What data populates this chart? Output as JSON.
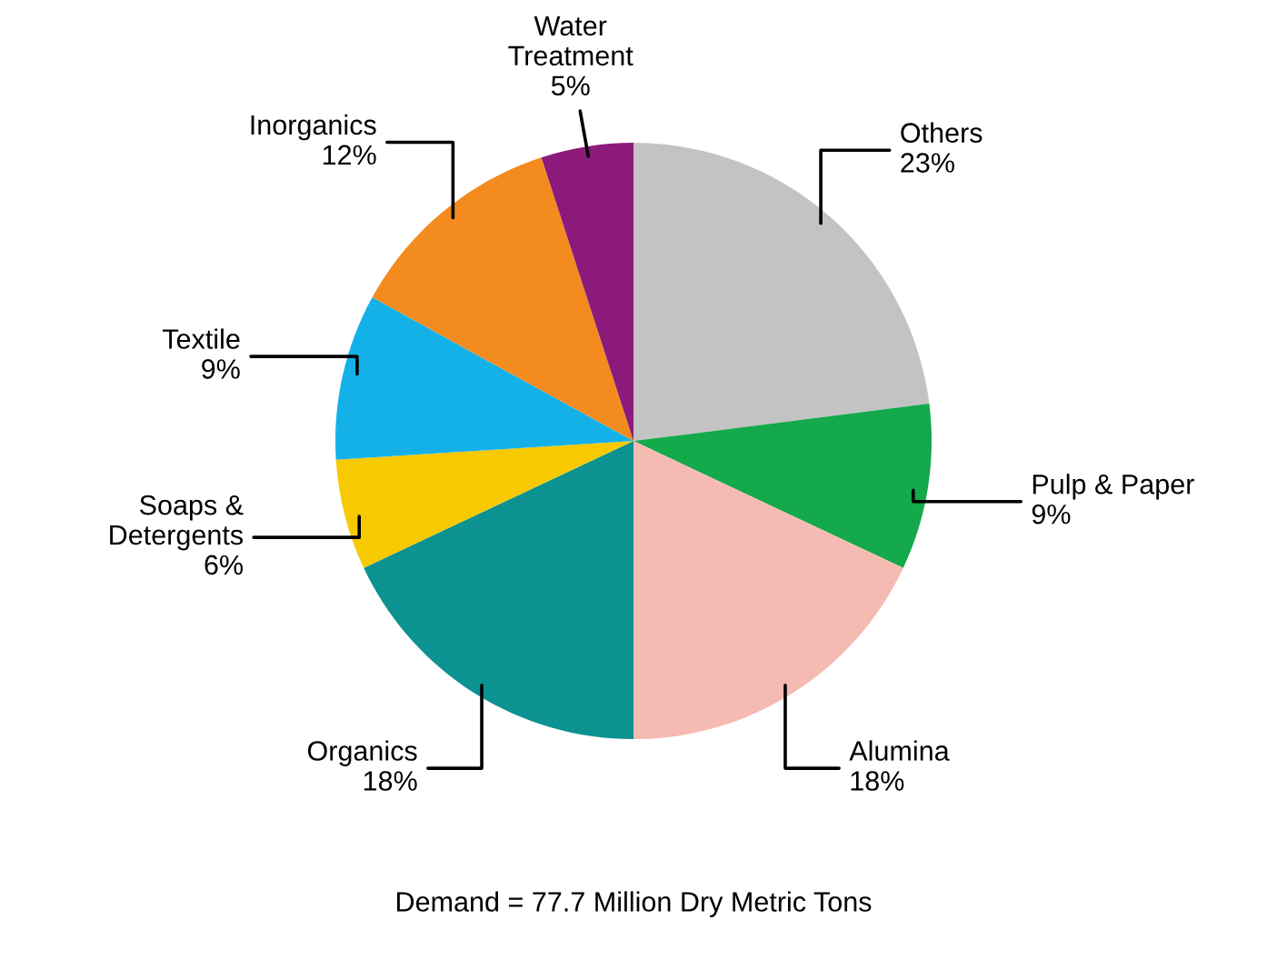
{
  "chart_data": {
    "type": "pie",
    "categories": [
      "Others",
      "Pulp & Paper",
      "Alumina",
      "Organics",
      "Soaps &\nDetergents",
      "Textile",
      "Inorganics",
      "Water\nTreatment"
    ],
    "values": [
      23,
      9,
      18,
      18,
      6,
      9,
      12,
      5
    ],
    "value_labels": [
      "23%",
      "9%",
      "18%",
      "18%",
      "6%",
      "9%",
      "12%",
      "5%"
    ],
    "colors": [
      "#c3c3c3",
      "#14a94b",
      "#f5bab2",
      "#0b9291",
      "#f7c900",
      "#14b1e9",
      "#f38b1f",
      "#8c1a7b"
    ],
    "annotations": [
      "Demand = 77.7 Million Dry Metric Tons"
    ],
    "legend": false
  }
}
